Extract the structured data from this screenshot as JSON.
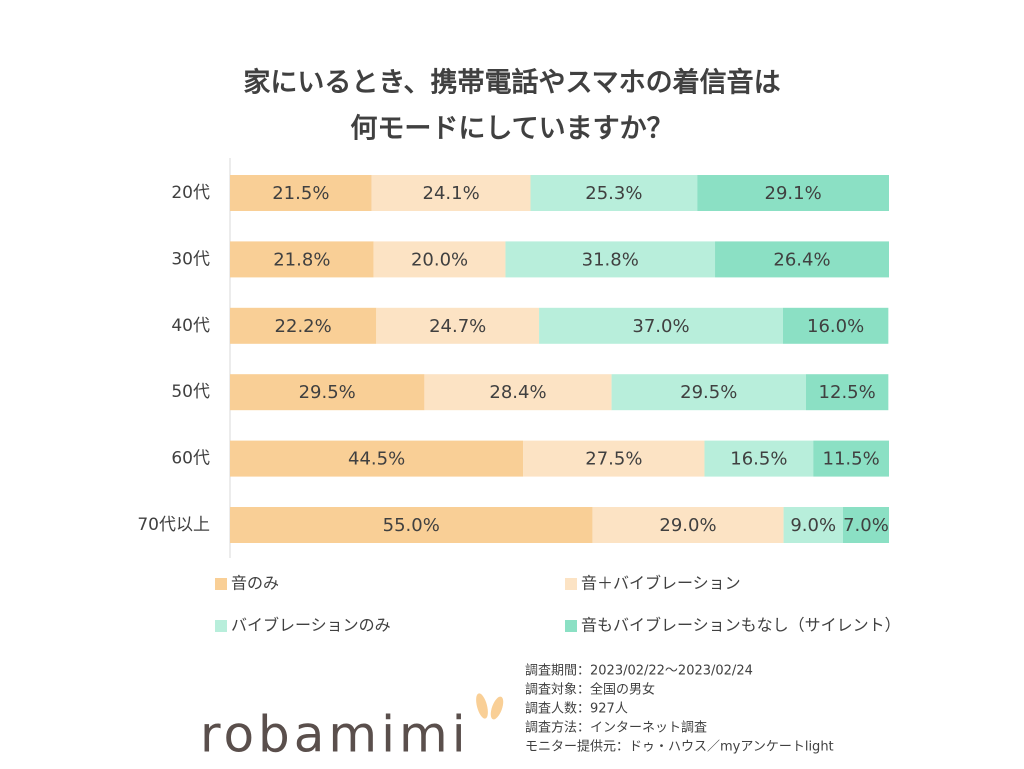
{
  "chart_data": {
    "type": "bar",
    "orientation": "horizontal",
    "stacked": true,
    "title": [
      "家にいるとき、携帯電話やスマホの着信音は",
      "何モードにしていますか？"
    ],
    "categories": [
      "20代",
      "30代",
      "40代",
      "50代",
      "60代",
      "70代以上"
    ],
    "xlim": [
      0,
      100
    ],
    "series": [
      {
        "name": "音のみ",
        "color": "#f9cf96",
        "values": [
          21.5,
          21.8,
          22.2,
          29.5,
          44.5,
          55.0
        ],
        "value_labels": [
          "21.5%",
          "21.8%",
          "22.2%",
          "29.5%",
          "44.5%",
          "55.0%"
        ]
      },
      {
        "name": "音＋バイブレーション",
        "color": "#fce3c4",
        "values": [
          24.1,
          20.0,
          24.7,
          28.4,
          27.5,
          29.0
        ],
        "value_labels": [
          "24.1%",
          "20.0%",
          "24.7%",
          "28.4%",
          "27.5%",
          "29.0%"
        ]
      },
      {
        "name": "バイブレーションのみ",
        "color": "#b8eedb",
        "values": [
          25.3,
          31.8,
          37.0,
          29.5,
          16.5,
          9.0
        ],
        "value_labels": [
          "25.3%",
          "31.8%",
          "37.0%",
          "29.5%",
          "16.5%",
          "9.0%"
        ]
      },
      {
        "name": "音もバイブレーションもなし（サイレント）",
        "color": "#8be0c4",
        "values": [
          29.1,
          26.4,
          16.0,
          12.5,
          11.5,
          7.0
        ],
        "value_labels": [
          "29.1%",
          "26.4%",
          "16.0%",
          "12.5%",
          "11.5%",
          "7.0%"
        ]
      }
    ],
    "legend_columns": 2,
    "notes": [
      "調査期間：2023/02/22～2023/02/24",
      "調査対象：全国の男女",
      "調査人数：927人",
      "調査方法：インターネット調査",
      "モニター提供元：ドゥ・ハウス／myアンケートlight"
    ],
    "logo": "robamimi"
  }
}
